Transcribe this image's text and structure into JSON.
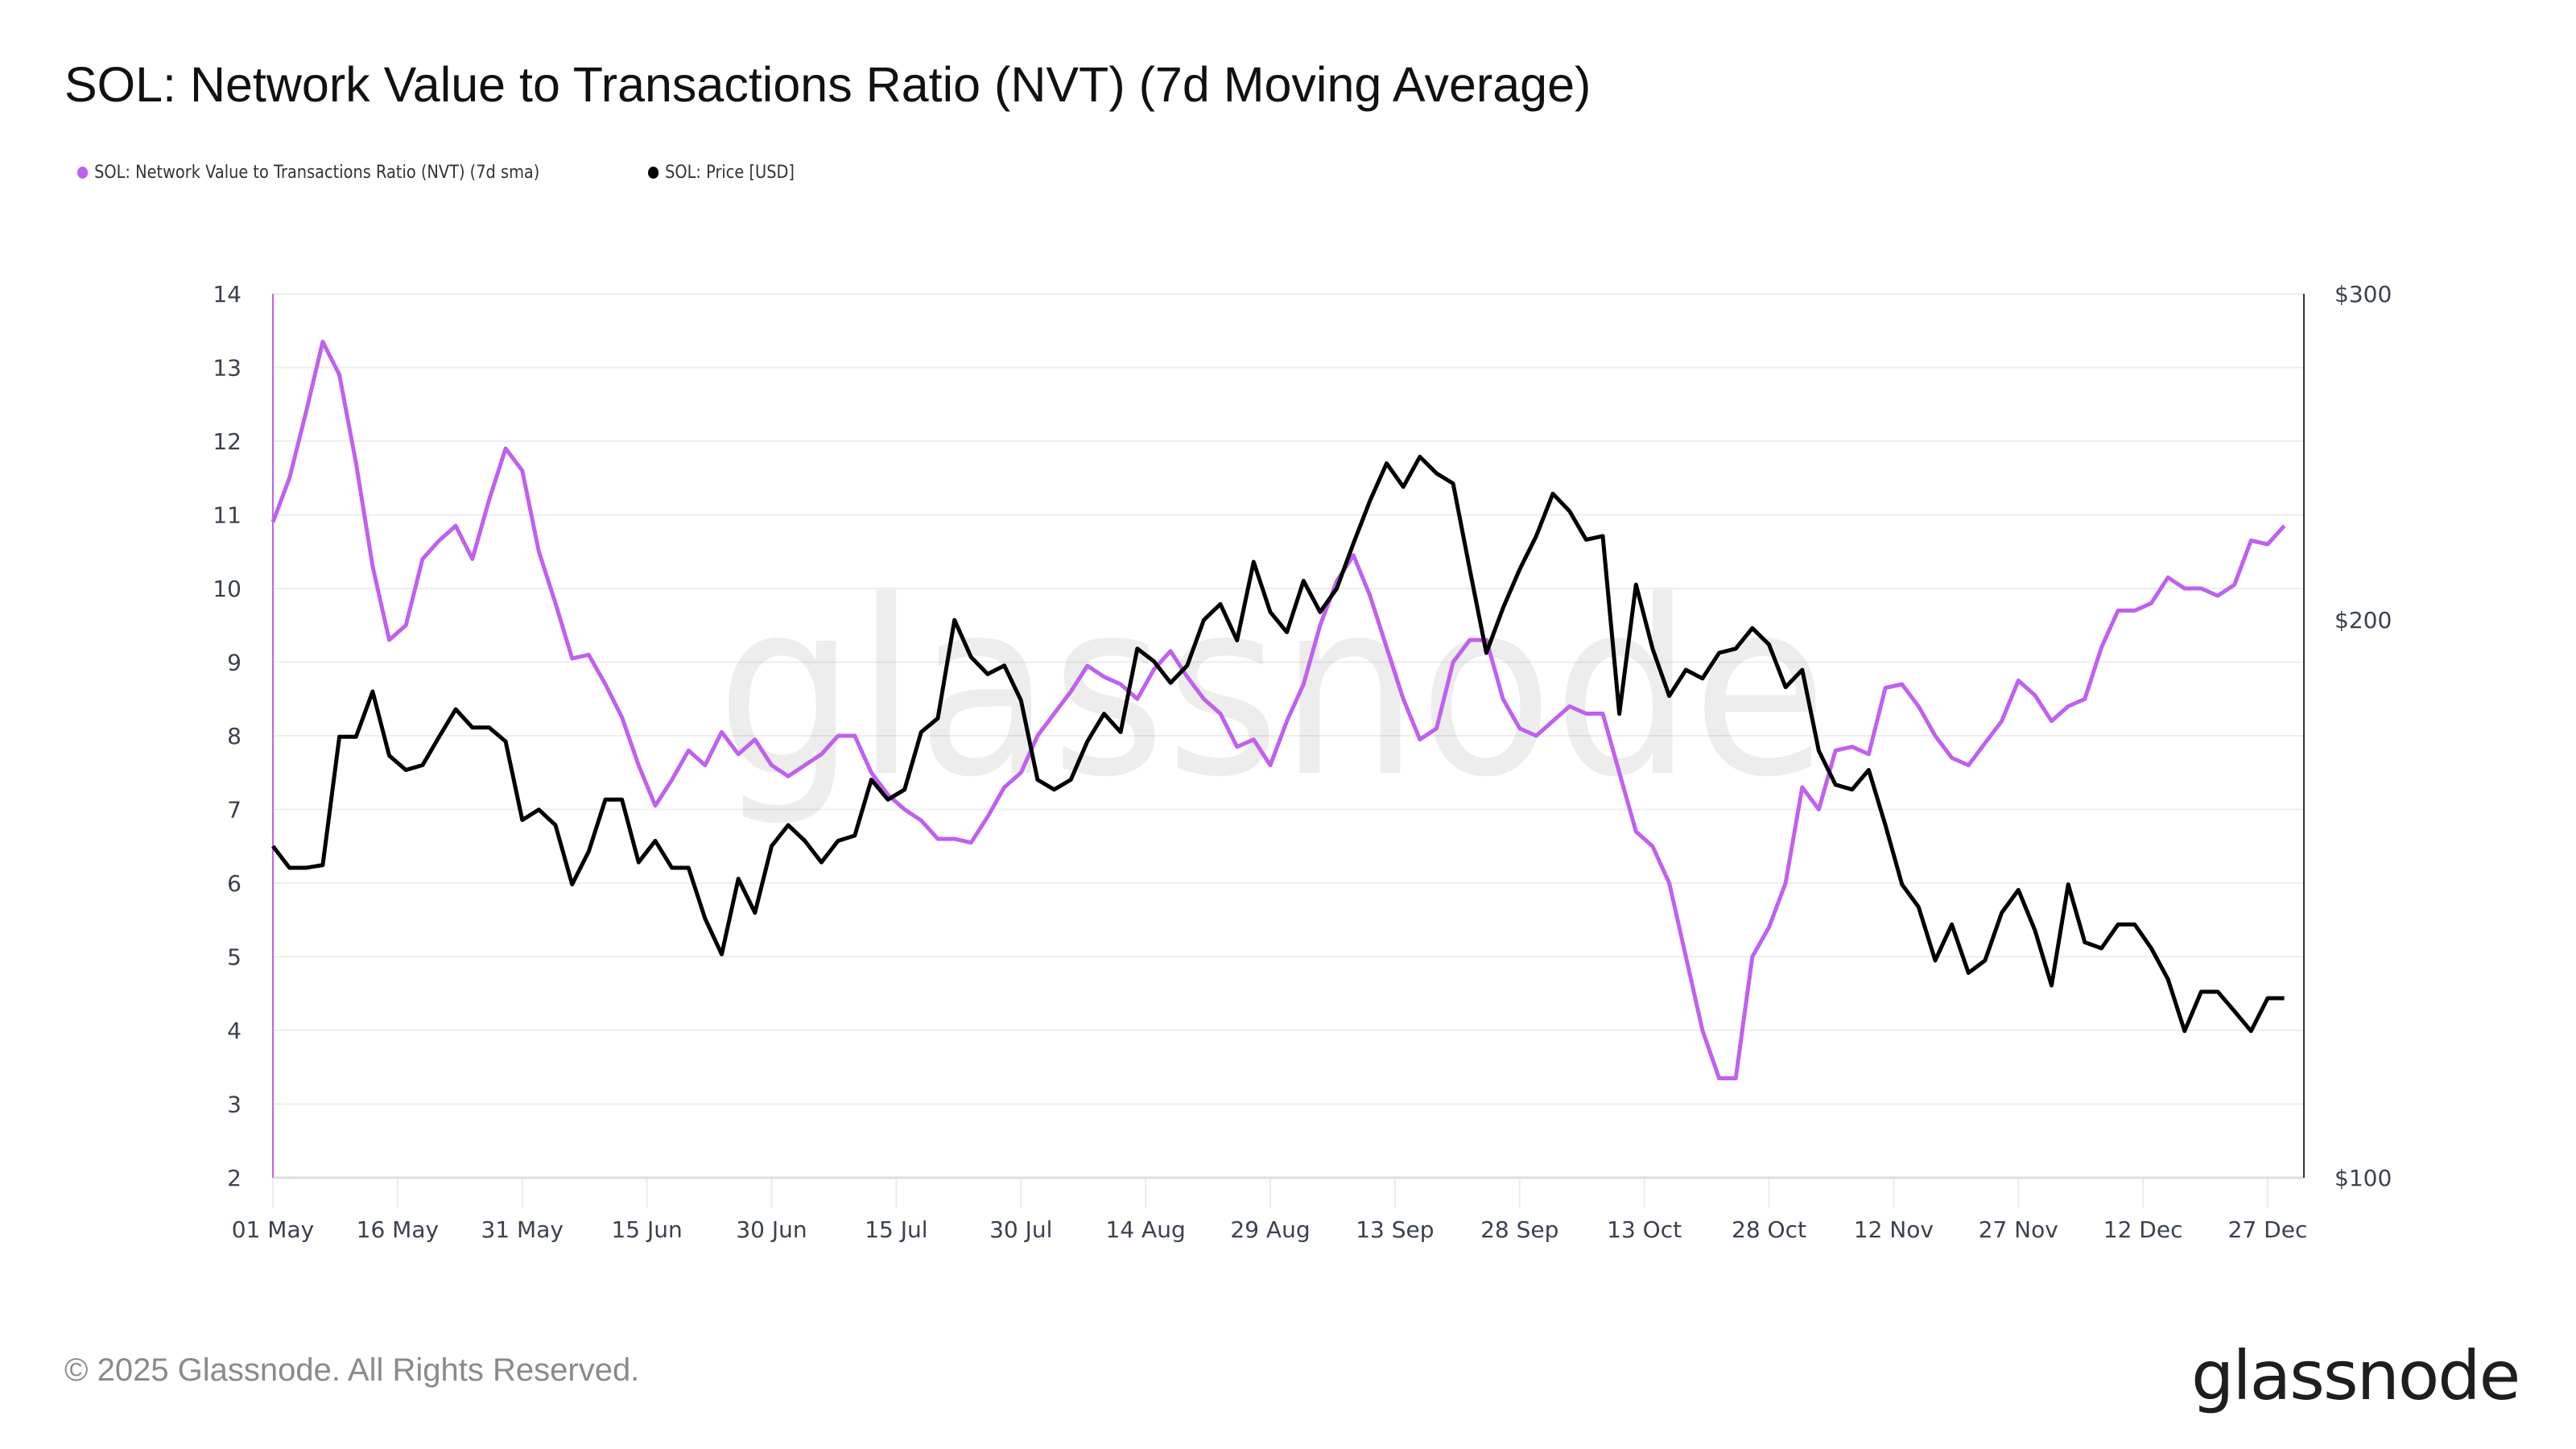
{
  "title": "SOL: Network Value to Transactions Ratio (NVT) (7d Moving Average)",
  "legend": [
    {
      "label": "SOL: Network Value to Transactions Ratio (NVT) (7d sma)",
      "color": "#c060ef"
    },
    {
      "label": "SOL: Price [USD]",
      "color": "#000000"
    }
  ],
  "watermark": "glassnode",
  "footer": "© 2025 Glassnode. All Rights Reserved.",
  "logo": "glassnode",
  "chart_data": {
    "type": "line",
    "title": "SOL: Network Value to Transactions Ratio (NVT) (7d Moving Average)",
    "grid": true,
    "legend_position": "top-left",
    "x_ticks": [
      {
        "date": "2025-05-01",
        "label": "01 May"
      },
      {
        "date": "2025-05-16",
        "label": "16 May"
      },
      {
        "date": "2025-05-31",
        "label": "31 May"
      },
      {
        "date": "2025-06-15",
        "label": "15 Jun"
      },
      {
        "date": "2025-06-30",
        "label": "30 Jun"
      },
      {
        "date": "2025-07-15",
        "label": "15 Jul"
      },
      {
        "date": "2025-07-30",
        "label": "30 Jul"
      },
      {
        "date": "2025-08-14",
        "label": "14 Aug"
      },
      {
        "date": "2025-08-29",
        "label": "29 Aug"
      },
      {
        "date": "2025-09-13",
        "label": "13 Sep"
      },
      {
        "date": "2025-09-28",
        "label": "28 Sep"
      },
      {
        "date": "2025-10-13",
        "label": "13 Oct"
      },
      {
        "date": "2025-10-28",
        "label": "28 Oct"
      },
      {
        "date": "2025-11-12",
        "label": "12 Nov"
      },
      {
        "date": "2025-11-27",
        "label": "27 Nov"
      },
      {
        "date": "2025-12-12",
        "label": "12 Dec"
      },
      {
        "date": "2025-12-27",
        "label": "27 Dec"
      }
    ],
    "x_range": [
      "2025-05-01",
      "2025-12-31"
    ],
    "y_left": {
      "scale": "linear",
      "range": [
        2,
        14
      ],
      "ticks": [
        "2",
        "3",
        "4",
        "5",
        "6",
        "7",
        "8",
        "9",
        "10",
        "11",
        "12",
        "13",
        "14"
      ]
    },
    "y_right": {
      "scale": "log",
      "range": [
        100,
        300
      ],
      "ticks": [
        {
          "value": 100,
          "label": "$100"
        },
        {
          "value": 200,
          "label": "$200"
        },
        {
          "value": 300,
          "label": "$300"
        }
      ]
    },
    "x": [
      "2025-05-01",
      "2025-05-03",
      "2025-05-05",
      "2025-05-07",
      "2025-05-09",
      "2025-05-11",
      "2025-05-13",
      "2025-05-15",
      "2025-05-17",
      "2025-05-19",
      "2025-05-21",
      "2025-05-23",
      "2025-05-25",
      "2025-05-27",
      "2025-05-29",
      "2025-05-31",
      "2025-06-02",
      "2025-06-04",
      "2025-06-06",
      "2025-06-08",
      "2025-06-10",
      "2025-06-12",
      "2025-06-14",
      "2025-06-16",
      "2025-06-18",
      "2025-06-20",
      "2025-06-22",
      "2025-06-24",
      "2025-06-26",
      "2025-06-28",
      "2025-06-30",
      "2025-07-02",
      "2025-07-04",
      "2025-07-06",
      "2025-07-08",
      "2025-07-10",
      "2025-07-12",
      "2025-07-14",
      "2025-07-16",
      "2025-07-18",
      "2025-07-20",
      "2025-07-22",
      "2025-07-24",
      "2025-07-26",
      "2025-07-28",
      "2025-07-30",
      "2025-08-01",
      "2025-08-03",
      "2025-08-05",
      "2025-08-07",
      "2025-08-09",
      "2025-08-11",
      "2025-08-13",
      "2025-08-15",
      "2025-08-17",
      "2025-08-19",
      "2025-08-21",
      "2025-08-23",
      "2025-08-25",
      "2025-08-27",
      "2025-08-29",
      "2025-08-31",
      "2025-09-02",
      "2025-09-04",
      "2025-09-06",
      "2025-09-08",
      "2025-09-10",
      "2025-09-12",
      "2025-09-14",
      "2025-09-16",
      "2025-09-18",
      "2025-09-20",
      "2025-09-22",
      "2025-09-24",
      "2025-09-26",
      "2025-09-28",
      "2025-09-30",
      "2025-10-02",
      "2025-10-04",
      "2025-10-06",
      "2025-10-08",
      "2025-10-10",
      "2025-10-12",
      "2025-10-14",
      "2025-10-16",
      "2025-10-18",
      "2025-10-20",
      "2025-10-22",
      "2025-10-24",
      "2025-10-26",
      "2025-10-28",
      "2025-10-30",
      "2025-11-01",
      "2025-11-03",
      "2025-11-05",
      "2025-11-07",
      "2025-11-09",
      "2025-11-11",
      "2025-11-13",
      "2025-11-15",
      "2025-11-17",
      "2025-11-19",
      "2025-11-21",
      "2025-11-23",
      "2025-11-25",
      "2025-11-27",
      "2025-11-29",
      "2025-12-01",
      "2025-12-03",
      "2025-12-05",
      "2025-12-07",
      "2025-12-09",
      "2025-12-11",
      "2025-12-13",
      "2025-12-15",
      "2025-12-17",
      "2025-12-19",
      "2025-12-21",
      "2025-12-23",
      "2025-12-25",
      "2025-12-27",
      "2025-12-29"
    ],
    "series": [
      {
        "name": "SOL: Network Value to Transactions Ratio (NVT) (7d sma)",
        "axis": "left",
        "color": "#c060ef",
        "values": [
          10.9,
          11.5,
          12.4,
          13.35,
          12.9,
          11.7,
          10.3,
          9.3,
          9.5,
          10.4,
          10.65,
          10.85,
          10.4,
          11.2,
          11.9,
          11.6,
          10.5,
          9.8,
          9.05,
          9.1,
          8.7,
          8.25,
          7.6,
          7.05,
          7.4,
          7.8,
          7.6,
          8.05,
          7.75,
          7.95,
          7.6,
          7.45,
          7.6,
          7.75,
          8.0,
          8.0,
          7.5,
          7.2,
          7.0,
          6.85,
          6.6,
          6.6,
          6.55,
          6.9,
          7.3,
          7.5,
          8.0,
          8.3,
          8.6,
          8.95,
          8.8,
          8.7,
          8.5,
          8.9,
          9.15,
          8.8,
          8.5,
          8.3,
          7.85,
          7.95,
          7.6,
          8.2,
          8.7,
          9.5,
          10.1,
          10.45,
          9.9,
          9.2,
          8.5,
          7.95,
          8.1,
          9.0,
          9.3,
          9.3,
          8.5,
          8.1,
          8.0,
          8.2,
          8.4,
          8.3,
          8.3,
          7.5,
          6.7,
          6.5,
          6.0,
          5.0,
          4.0,
          3.35,
          3.35,
          5.0,
          5.4,
          6.0,
          7.3,
          7.0,
          7.8,
          7.85,
          7.75,
          8.65,
          8.7,
          8.4,
          8.0,
          7.7,
          7.6,
          7.9,
          8.2,
          8.75,
          8.55,
          8.2,
          8.4,
          8.5,
          9.2,
          9.7,
          9.7,
          9.8,
          10.15,
          10.0,
          10.0,
          9.9,
          10.05,
          10.65,
          10.6,
          10.85
        ]
      },
      {
        "name": "SOL: Price [USD]",
        "axis": "right",
        "color": "#000000",
        "values": [
          151,
          147,
          147,
          147.5,
          173,
          173,
          183,
          169,
          166,
          167,
          173,
          179,
          175,
          175,
          172,
          156,
          158,
          155,
          144,
          150,
          160,
          160,
          148,
          152,
          147,
          147,
          138,
          132,
          145,
          139,
          151,
          155,
          152,
          148,
          152,
          153,
          164,
          160,
          162,
          174,
          177,
          200,
          191,
          187,
          189,
          181,
          164,
          162,
          164,
          172,
          178,
          174,
          193,
          190,
          185,
          189,
          200,
          204,
          195,
          215,
          202,
          197,
          210,
          202,
          208,
          220,
          232,
          243,
          236,
          245,
          240,
          237,
          213,
          192,
          203,
          213,
          222,
          234,
          229,
          221,
          222,
          178,
          209,
          193,
          182,
          188,
          186,
          192,
          193,
          198,
          194,
          184,
          188,
          170,
          163,
          162,
          166,
          155,
          144,
          140,
          131,
          137,
          129,
          131,
          139,
          143,
          136,
          127,
          144,
          134,
          133,
          137,
          137,
          133,
          128,
          120,
          126,
          126,
          123,
          120,
          125,
          125
        ]
      }
    ]
  }
}
